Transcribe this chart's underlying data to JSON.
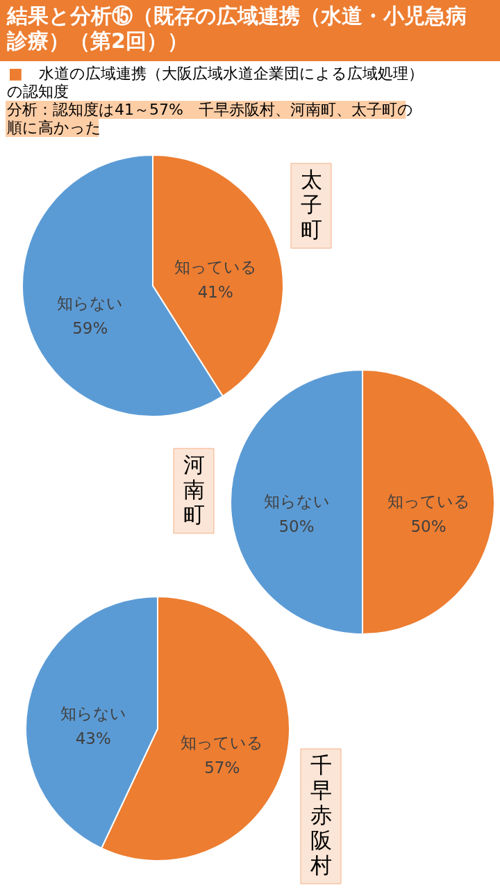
{
  "chart_data": [
    {
      "type": "other",
      "title": "結果と分析⑮（既存の広域連携（水道・小児急病診療）（第2回））",
      "subtitle": "■　水道の広域連携（大阪広域水道企業団による広域処理）の認知度",
      "annotations": [
        "分析：認知度は41～57%　千早赤阪村、河南町、太子町の順に高かった"
      ]
    },
    {
      "type": "pie",
      "title": "太子町",
      "categories": [
        "知っている",
        "知らない"
      ],
      "values": [
        41,
        59
      ],
      "colors": [
        "#ed7d31",
        "#5b9bd5"
      ],
      "value_labels": [
        "41%",
        "59%"
      ]
    },
    {
      "type": "pie",
      "title": "河南町",
      "categories": [
        "知っている",
        "知らない"
      ],
      "values": [
        50,
        50
      ],
      "colors": [
        "#ed7d31",
        "#5b9bd5"
      ],
      "value_labels": [
        "50%",
        "50%"
      ]
    },
    {
      "type": "pie",
      "title": "千早赤阪村",
      "categories": [
        "知っている",
        "知らない"
      ],
      "values": [
        57,
        43
      ],
      "colors": [
        "#ed7d31",
        "#5b9bd5"
      ],
      "value_labels": [
        "57%",
        "43%"
      ]
    }
  ]
}
